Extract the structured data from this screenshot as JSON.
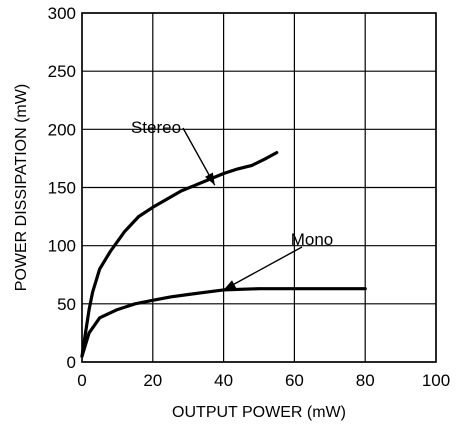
{
  "chart_data": {
    "type": "line",
    "xlabel": "OUTPUT POWER (mW)",
    "ylabel": "POWER DISSIPATION (mW)",
    "xlim": [
      0,
      100
    ],
    "ylim": [
      0,
      300
    ],
    "x_ticks": [
      "0",
      "20",
      "40",
      "60",
      "80",
      "100"
    ],
    "y_ticks": [
      "0",
      "50",
      "100",
      "150",
      "200",
      "250",
      "300"
    ],
    "grid": true,
    "series": [
      {
        "name": "Stereo",
        "x": [
          0,
          1,
          2,
          3,
          5,
          8,
          12,
          16,
          20,
          24,
          28,
          32,
          36,
          40,
          44,
          48,
          52,
          55
        ],
        "y": [
          5,
          25,
          45,
          60,
          80,
          95,
          112,
          125,
          133,
          140,
          147,
          152,
          157,
          162,
          166,
          169,
          175,
          180
        ]
      },
      {
        "name": "Mono",
        "x": [
          0,
          2,
          5,
          10,
          15,
          20,
          25,
          30,
          35,
          40,
          50,
          60,
          70,
          80
        ],
        "y": [
          5,
          25,
          38,
          45,
          50,
          53,
          56,
          58,
          60,
          62,
          63,
          63,
          63,
          63
        ]
      }
    ]
  }
}
